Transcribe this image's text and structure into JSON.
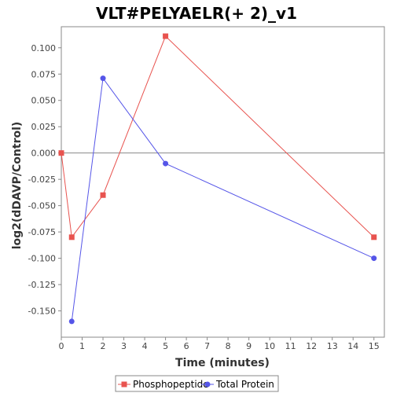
{
  "chart_data": {
    "type": "line",
    "title": "VLT#PELYAELR(+ 2)_v1",
    "xlabel": "Time (minutes)",
    "ylabel": "log2(dDAVP/Control)",
    "xlim": [
      0,
      15.5
    ],
    "ylim": [
      -0.175,
      0.12
    ],
    "xticks": [
      0,
      1,
      2,
      3,
      4,
      5,
      6,
      7,
      8,
      9,
      10,
      11,
      12,
      13,
      14,
      15
    ],
    "yticks": [
      -0.15,
      -0.125,
      -0.1,
      -0.075,
      -0.05,
      -0.025,
      0.0,
      0.025,
      0.05,
      0.075,
      0.1
    ],
    "ytick_labels": [
      "-0.150",
      "-0.125",
      "-0.100",
      "-0.075",
      "-0.050",
      "-0.025",
      "0.000",
      "0.025",
      "0.050",
      "0.075",
      "0.100"
    ],
    "grid": false,
    "zero_line": true,
    "legend_position": "bottom",
    "series": [
      {
        "name": "Phosphopeptide",
        "color": "#e8534f",
        "marker": "square",
        "x": [
          0,
          0.5,
          2,
          5,
          15
        ],
        "y": [
          0.0,
          -0.08,
          -0.04,
          0.111,
          -0.08
        ]
      },
      {
        "name": "Total Protein",
        "color": "#5555e8",
        "marker": "circle",
        "x": [
          0.5,
          2,
          5,
          15
        ],
        "y": [
          -0.16,
          0.071,
          -0.01,
          -0.1
        ]
      }
    ]
  }
}
